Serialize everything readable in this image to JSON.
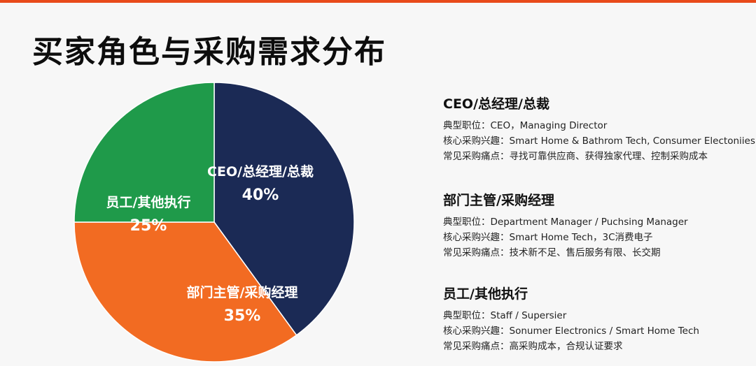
{
  "title": "买家角色与采购需求分布",
  "chart_data": {
    "type": "pie",
    "slices": [
      {
        "label": "CEO/总经理/总裁",
        "value": 40,
        "value_label": "40%",
        "color": "#1b2a55"
      },
      {
        "label": "部门主管/采购经理",
        "value": 35,
        "value_label": "35%",
        "color": "#f26b22"
      },
      {
        "label": "员工/其他执行",
        "value": 25,
        "value_label": "25%",
        "color": "#1f9a4a"
      }
    ]
  },
  "legend_blocks": [
    {
      "heading": "CEO/总经理/总裁",
      "lines": [
        "典型职位：CEO，Managing Director",
        "核心采购兴趣：Smart Home & Bathrom Tech, Consumer Electoniies",
        "常见采购痛点：寻找可靠供应商、获得独家代理、控制采购成本"
      ]
    },
    {
      "heading": "部门主管/采购经理",
      "lines": [
        "典型职位：Department Manager / Puchsing Manager",
        "核心采购兴趣：Smart Home Tech，3C消费电子",
        "常见采购痛点：技术新不足、售后服务有限、长交期"
      ]
    },
    {
      "heading": "员工/其他执行",
      "lines": [
        "典型职位：Staff / Supersier",
        "核心采购兴趣：Sonumer Electronics / Smart Home Tech",
        "常见采购痛点：高采购成本，合规认证要求"
      ]
    }
  ]
}
